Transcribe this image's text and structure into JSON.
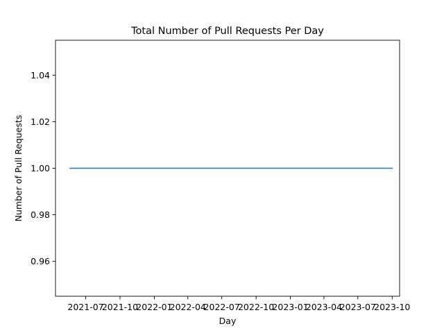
{
  "chart_data": {
    "type": "line",
    "title": "Total Number of Pull Requests Per Day",
    "xlabel": "Day",
    "ylabel": "Number of Pull Requests",
    "x_ticks": [
      "2021-07",
      "2021-10",
      "2022-01",
      "2022-04",
      "2022-07",
      "2022-10",
      "2023-01",
      "2023-04",
      "2023-07",
      "2023-10"
    ],
    "y_ticks": [
      "0.96",
      "0.98",
      "1.00",
      "1.02",
      "1.04"
    ],
    "ylim": [
      0.945,
      1.055
    ],
    "xlim": [
      "2021-04-11",
      "2023-10-21"
    ],
    "grid": false,
    "series": [
      {
        "color": "#1f77b4",
        "x": [
          "2021-05-20",
          "2023-10-01"
        ],
        "y": [
          1.0,
          1.0
        ]
      }
    ]
  }
}
